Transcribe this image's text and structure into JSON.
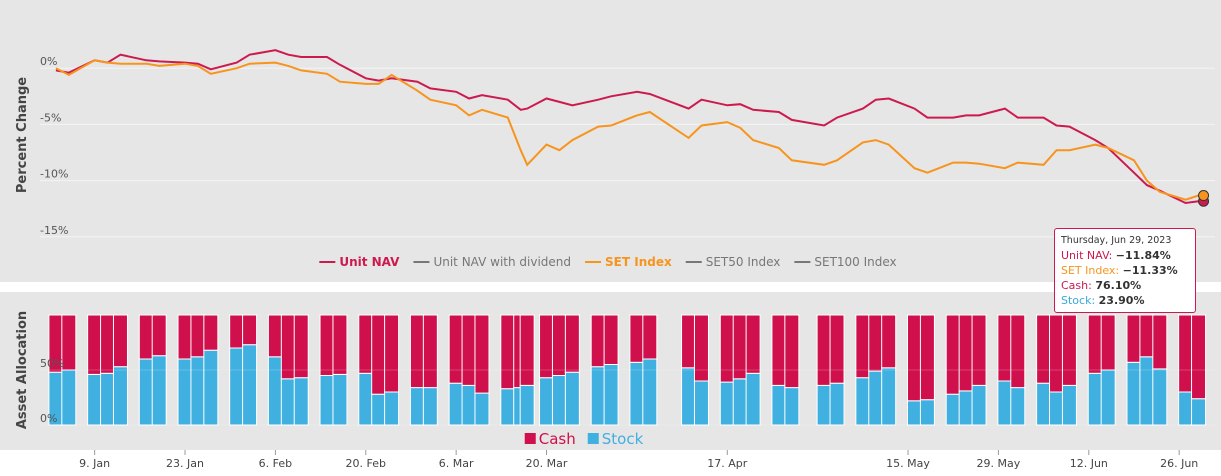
{
  "chart_data": [
    {
      "type": "line",
      "y_label": "Percent Change",
      "x": [
        "01-03",
        "01-05",
        "01-09",
        "01-11",
        "01-13",
        "01-17",
        "01-19",
        "01-23",
        "01-25",
        "01-27",
        "01-31",
        "02-02",
        "02-06",
        "02-08",
        "02-10",
        "02-14",
        "02-16",
        "02-20",
        "02-22",
        "02-24",
        "02-28",
        "03-02",
        "03-06",
        "03-08",
        "03-10",
        "03-14",
        "03-16",
        "03-17",
        "03-20",
        "03-22",
        "03-24",
        "03-28",
        "03-30",
        "04-03",
        "04-05",
        "04-11",
        "04-13",
        "04-17",
        "04-19",
        "04-21",
        "04-25",
        "04-27",
        "05-02",
        "05-04",
        "05-08",
        "05-10",
        "05-12",
        "05-16",
        "05-18",
        "05-22",
        "05-24",
        "05-26",
        "05-30",
        "06-01",
        "06-05",
        "06-07",
        "06-09",
        "06-13",
        "06-15",
        "06-19",
        "06-21",
        "06-23",
        "06-27",
        "06-29"
      ],
      "xlim": [
        "01-01",
        "06-30"
      ],
      "ylim": [
        -16,
        5
      ],
      "yticks": [
        {
          "value": 0,
          "label": "0%"
        },
        {
          "value": -5,
          "label": "-5%"
        },
        {
          "value": -10,
          "label": "-10%"
        },
        {
          "value": -15,
          "label": "-15%"
        }
      ],
      "grid": true,
      "series": [
        {
          "name": "Unit NAV",
          "color": "#cc1a4f",
          "values": [
            -0.2,
            -0.4,
            0.7,
            0.5,
            1.2,
            0.7,
            0.6,
            0.5,
            0.4,
            -0.1,
            0.5,
            1.2,
            1.6,
            1.2,
            1.0,
            1.0,
            0.3,
            -0.9,
            -1.1,
            -0.9,
            -1.2,
            -1.8,
            -2.1,
            -2.7,
            -2.4,
            -2.8,
            -3.7,
            -3.6,
            -2.7,
            -3.0,
            -3.3,
            -2.8,
            -2.5,
            -2.1,
            -2.3,
            -3.6,
            -2.8,
            -3.3,
            -3.2,
            -3.7,
            -3.9,
            -4.6,
            -5.1,
            -4.4,
            -3.6,
            -2.8,
            -2.7,
            -3.6,
            -4.4,
            -4.4,
            -4.2,
            -4.2,
            -3.6,
            -4.4,
            -4.4,
            -5.1,
            -5.2,
            -6.4,
            -7.1,
            -9.3,
            -10.4,
            -10.9,
            -12.0,
            -11.84
          ]
        },
        {
          "name": "Unit NAV with dividend",
          "color": "#888888",
          "hidden": true
        },
        {
          "name": "SET Index",
          "color": "#f7941d",
          "values": [
            0,
            -0.6,
            0.7,
            0.5,
            0.4,
            0.4,
            0.2,
            0.4,
            0.2,
            -0.5,
            0,
            0.4,
            0.5,
            0.2,
            -0.2,
            -0.5,
            -1.2,
            -1.4,
            -1.4,
            -0.6,
            -2.0,
            -2.8,
            -3.3,
            -4.2,
            -3.7,
            -4.4,
            -7.3,
            -8.6,
            -6.8,
            -7.3,
            -6.4,
            -5.2,
            -5.1,
            -4.2,
            -3.9,
            -6.2,
            -5.1,
            -4.8,
            -5.3,
            -6.4,
            -7.1,
            -8.2,
            -8.6,
            -8.2,
            -6.6,
            -6.4,
            -6.8,
            -8.9,
            -9.3,
            -8.4,
            -8.4,
            -8.5,
            -8.9,
            -8.4,
            -8.6,
            -7.3,
            -7.3,
            -6.8,
            -7.1,
            -8.2,
            -10.0,
            -11.0,
            -11.7,
            -11.33
          ]
        },
        {
          "name": "SET50 Index",
          "color": "#888888",
          "hidden": true
        },
        {
          "name": "SET100 Index",
          "color": "#888888",
          "hidden": true
        }
      ],
      "tooltip": {
        "title": "Thursday, Jun 29, 2023",
        "rows": [
          {
            "label": "Unit NAV:",
            "value": "−11.84%",
            "color": "#cc1a4f"
          },
          {
            "label": "SET Index:",
            "value": "−11.33%",
            "color": "#f7941d"
          },
          {
            "label": "Cash:",
            "value": "76.10%",
            "color": "#cc1a4f"
          },
          {
            "label": "Stock:",
            "value": "23.90%",
            "color": "#3aa9dc"
          }
        ]
      }
    },
    {
      "type": "stacked_bar",
      "y_label": "Asset Allocation",
      "x": [
        "01-03",
        "01-05",
        "01-09",
        "01-11",
        "01-13",
        "01-17",
        "01-19",
        "01-23",
        "01-25",
        "01-27",
        "01-31",
        "02-02",
        "02-06",
        "02-08",
        "02-10",
        "02-14",
        "02-16",
        "02-20",
        "02-22",
        "02-24",
        "02-28",
        "03-02",
        "03-06",
        "03-08",
        "03-10",
        "03-14",
        "03-16",
        "03-17",
        "03-20",
        "03-22",
        "03-24",
        "03-28",
        "03-30",
        "04-03",
        "04-05",
        "04-11",
        "04-13",
        "04-17",
        "04-19",
        "04-21",
        "04-25",
        "04-27",
        "05-02",
        "05-04",
        "05-08",
        "05-10",
        "05-12",
        "05-16",
        "05-18",
        "05-22",
        "05-24",
        "05-26",
        "05-30",
        "06-01",
        "06-05",
        "06-07",
        "06-09",
        "06-13",
        "06-15",
        "06-19",
        "06-21",
        "06-23",
        "06-27",
        "06-29"
      ],
      "xlim": [
        "01-01",
        "06-30"
      ],
      "xticks": [
        {
          "value": "01-09",
          "label": "9. Jan"
        },
        {
          "value": "01-23",
          "label": "23. Jan"
        },
        {
          "value": "02-06",
          "label": "6. Feb"
        },
        {
          "value": "02-20",
          "label": "20. Feb"
        },
        {
          "value": "03-06",
          "label": "6. Mar"
        },
        {
          "value": "03-20",
          "label": "20. Mar"
        },
        {
          "value": "04-17",
          "label": "17. Apr"
        },
        {
          "value": "05-15",
          "label": "15. May"
        },
        {
          "value": "05-29",
          "label": "29. May"
        },
        {
          "value": "06-12",
          "label": "12. Jun"
        },
        {
          "value": "06-26",
          "label": "26. Jun"
        }
      ],
      "ylim": [
        0,
        100
      ],
      "yticks": [
        {
          "value": 50,
          "label": "50%"
        },
        {
          "value": 0,
          "label": "0%"
        }
      ],
      "series": [
        {
          "name": "Cash",
          "color": "#d0104c",
          "values": [
            52,
            50,
            54,
            53,
            47,
            40,
            37,
            40,
            38,
            32,
            30,
            27,
            38,
            58,
            57,
            55,
            54,
            53,
            72,
            70,
            66,
            66,
            62,
            64,
            71,
            67,
            66,
            64,
            57,
            55,
            52,
            47,
            45,
            43,
            40,
            48,
            60,
            61,
            58,
            53,
            64,
            66,
            64,
            62,
            57,
            51,
            48,
            78,
            77,
            72,
            69,
            64,
            60,
            66,
            62,
            70,
            64,
            53,
            50,
            43,
            38,
            49,
            70,
            76.1
          ]
        },
        {
          "name": "Stock",
          "color": "#3fb0e0",
          "values": [
            48,
            50,
            46,
            47,
            53,
            60,
            63,
            60,
            62,
            68,
            70,
            73,
            62,
            42,
            43,
            45,
            46,
            47,
            28,
            30,
            34,
            34,
            38,
            36,
            29,
            33,
            34,
            36,
            43,
            45,
            48,
            53,
            55,
            57,
            60,
            52,
            40,
            39,
            42,
            47,
            36,
            34,
            36,
            38,
            43,
            49,
            52,
            22,
            23,
            28,
            31,
            36,
            40,
            34,
            38,
            30,
            36,
            47,
            50,
            57,
            62,
            51,
            30,
            23.9
          ]
        }
      ]
    }
  ]
}
